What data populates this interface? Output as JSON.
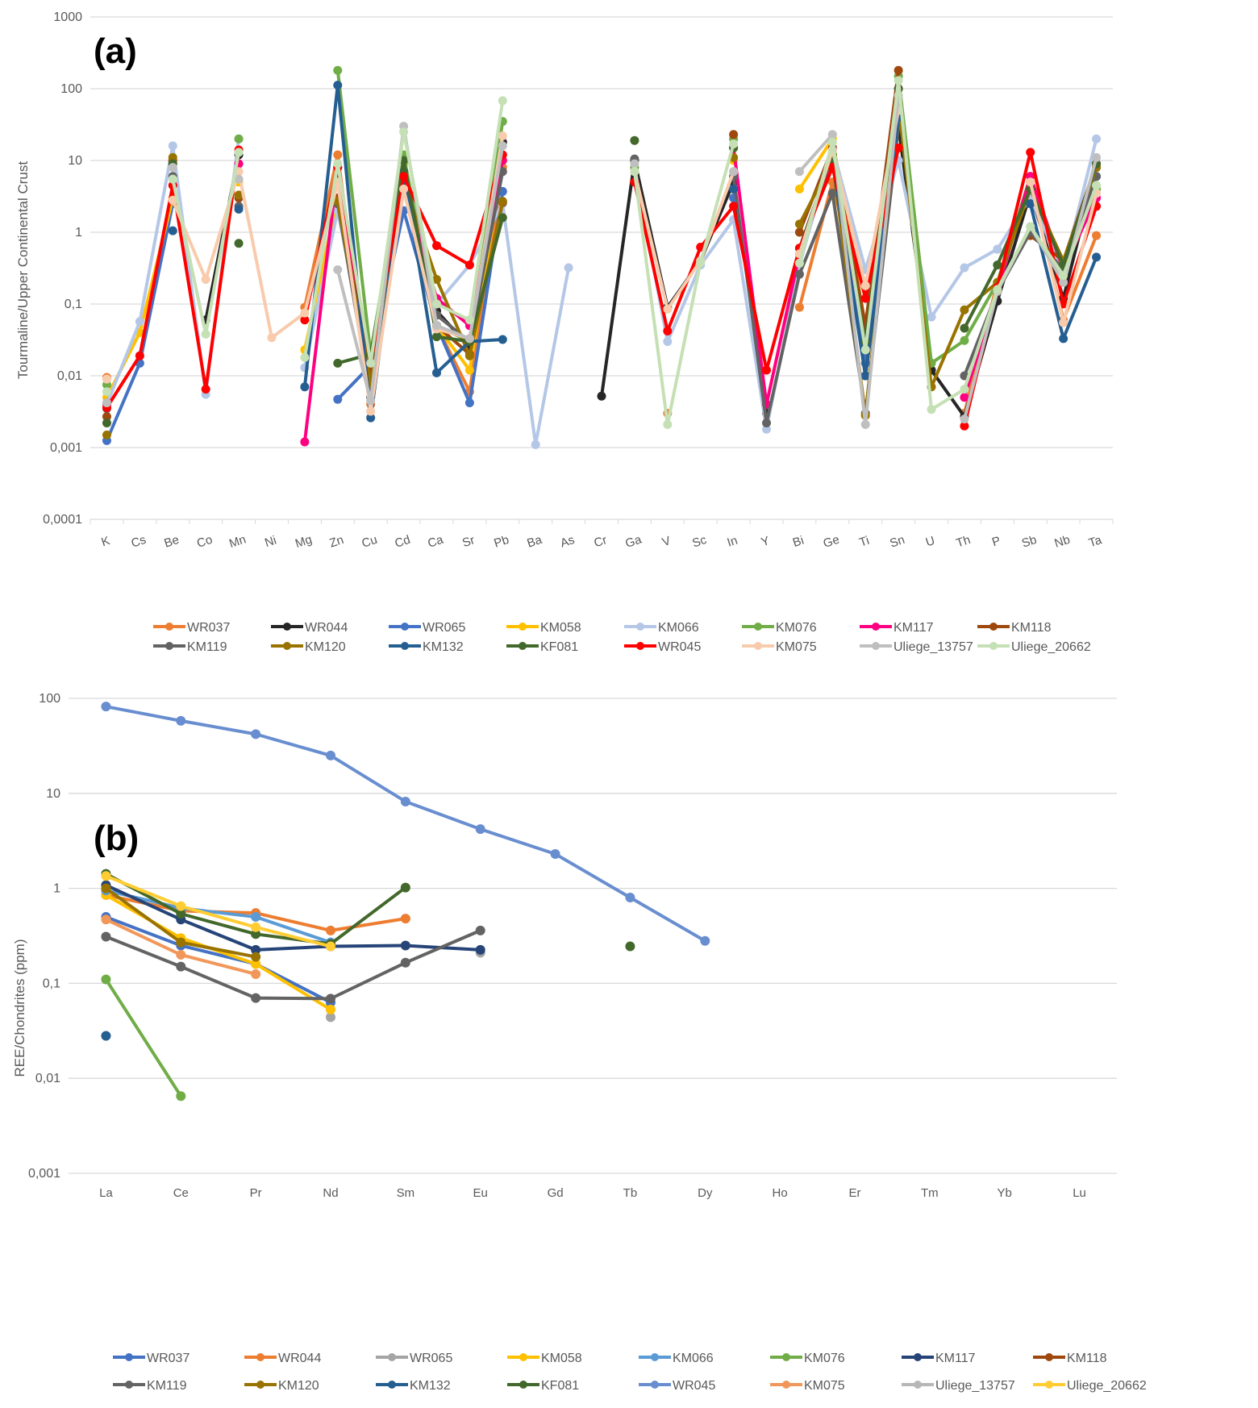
{
  "chart_data": [
    {
      "type": "line",
      "panel_label": "(a)",
      "title": "",
      "xlabel": "",
      "ylabel": "Tourmaline/Upper Continental Crust",
      "yscale": "log",
      "ylim": [
        0.0001,
        1000
      ],
      "yticks": [
        "0,0001",
        "0,001",
        "0,01",
        "0,1",
        "1",
        "10",
        "100",
        "1000"
      ],
      "grid": true,
      "legend": "bottom",
      "categories": [
        "K",
        "Cs",
        "Be",
        "Co",
        "Mn",
        "Ni",
        "Mg",
        "Zn",
        "Cu",
        "Cd",
        "Ca",
        "Sr",
        "Pb",
        "Ba",
        "As",
        "Cr",
        "Ga",
        "V",
        "Sc",
        "In",
        "Y",
        "Bi",
        "Ge",
        "Ti",
        "Sn",
        "U",
        "Th",
        "P",
        "Sb",
        "Nb",
        "Ta"
      ],
      "series": [
        {
          "name": "WR037",
          "color": "#ED7D31",
          "values": [
            0.0095,
            null,
            null,
            null,
            null,
            null,
            0.09,
            12,
            0.004,
            4,
            0.05,
            0.006,
            8,
            null,
            null,
            null,
            null,
            0.003,
            null,
            null,
            null,
            0.09,
            5,
            0.05,
            60,
            null,
            0.003,
            0.2,
            5,
            0.06,
            0.9
          ]
        },
        {
          "name": "WR044",
          "color": "#262626",
          "values": [
            null,
            null,
            null,
            0.06,
            12,
            null,
            null,
            5,
            0.008,
            5,
            0.08,
            0.025,
            18,
            null,
            null,
            0.0052,
            10,
            0.09,
            0.4,
            5,
            0.003,
            null,
            15,
            0.01,
            30,
            0.012,
            0.0027,
            0.11,
            3.5,
            0.12,
            8
          ]
        },
        {
          "name": "WR065",
          "color": "#4472C4",
          "values": [
            0.00125,
            0.015,
            2.5,
            null,
            null,
            null,
            null,
            0.0047,
            0.014,
            2,
            0.05,
            0.0042,
            3.7,
            null,
            null,
            null,
            null,
            null,
            null,
            3,
            null,
            null,
            10,
            0.015,
            40,
            null,
            null,
            null,
            2.8,
            0.3,
            6
          ]
        },
        {
          "name": "KM058",
          "color": "#FFC000",
          "values": [
            0.005,
            0.04,
            3,
            null,
            5,
            null,
            0.023,
            3,
            0.02,
            9,
            0.05,
            0.012,
            10,
            null,
            null,
            null,
            null,
            null,
            null,
            10,
            null,
            4,
            20,
            0.05,
            60,
            null,
            null,
            null,
            5,
            0.3,
            4
          ]
        },
        {
          "name": "KM066",
          "color": "#B4C7E7",
          "values": [
            0.004,
            0.057,
            16,
            0.0055,
            20,
            null,
            0.013,
            2,
            0.01,
            5,
            0.1,
            0.35,
            2.5,
            0.0011,
            0.32,
            null,
            8,
            0.03,
            0.35,
            1.5,
            0.0018,
            0.35,
            15,
            0.3,
            10,
            0.066,
            0.32,
            0.58,
            3,
            0.3,
            20
          ]
        },
        {
          "name": "KM076",
          "color": "#70AD47",
          "values": [
            0.0075,
            null,
            null,
            null,
            20,
            null,
            null,
            180,
            0.02,
            12,
            0.05,
            0.03,
            35,
            null,
            null,
            null,
            8,
            null,
            null,
            20,
            null,
            null,
            12,
            0.05,
            150,
            0.015,
            0.031,
            0.2,
            6,
            0.3,
            4
          ]
        },
        {
          "name": "KM117",
          "color": "#FF0080",
          "values": [
            0.004,
            null,
            null,
            null,
            9,
            null,
            0.0012,
            8,
            0.01,
            5,
            0.12,
            0.05,
            10,
            null,
            null,
            null,
            null,
            null,
            null,
            15,
            0.004,
            0.5,
            10,
            0.03,
            100,
            null,
            0.005,
            0.15,
            6,
            0.3,
            3
          ]
        },
        {
          "name": "KM118",
          "color": "#9E480E",
          "values": [
            0.0027,
            null,
            10,
            null,
            3,
            null,
            null,
            3,
            0.01,
            5,
            0.05,
            0.02,
            2.6,
            null,
            null,
            null,
            null,
            null,
            null,
            23,
            null,
            1,
            15,
            0.05,
            180,
            null,
            null,
            null,
            0.9,
            0.4,
            9
          ]
        },
        {
          "name": "KM119",
          "color": "#636363",
          "values": [
            0.0035,
            null,
            6,
            null,
            2.3,
            null,
            null,
            2.5,
            0.005,
            4,
            0.07,
            0.03,
            7,
            null,
            null,
            null,
            10.5,
            null,
            null,
            6,
            0.0022,
            0.26,
            3.5,
            0.003,
            30,
            null,
            0.01,
            0.15,
            1,
            0.3,
            6
          ]
        },
        {
          "name": "KM120",
          "color": "#997300",
          "values": [
            0.0015,
            null,
            11,
            null,
            3.3,
            null,
            null,
            2.7,
            0.008,
            5,
            0.22,
            0.019,
            2.7,
            null,
            null,
            null,
            null,
            null,
            null,
            11,
            null,
            1.3,
            10,
            0.0028,
            60,
            0.007,
            0.083,
            0.2,
            4,
            0.4,
            8
          ]
        },
        {
          "name": "KM132",
          "color": "#255E91",
          "values": [
            0.0042,
            null,
            1.05,
            null,
            2.1,
            null,
            0.007,
            112,
            0.0026,
            7,
            0.011,
            0.03,
            0.032,
            null,
            null,
            null,
            null,
            null,
            null,
            4,
            null,
            null,
            10,
            0.01,
            40,
            null,
            null,
            null,
            2.5,
            0.033,
            0.45
          ]
        },
        {
          "name": "KF081",
          "color": "#43682B",
          "values": [
            0.0022,
            null,
            9,
            null,
            0.7,
            null,
            null,
            0.015,
            0.02,
            10,
            0.035,
            0.03,
            1.6,
            null,
            null,
            null,
            19,
            null,
            null,
            15,
            null,
            0.6,
            12,
            0.03,
            100,
            null,
            0.046,
            0.35,
            4,
            0.35,
            9
          ]
        },
        {
          "name": "WR045",
          "color": "#FF0000",
          "values": [
            0.0036,
            0.019,
            4.5,
            0.0065,
            14,
            null,
            0.06,
            8,
            0.015,
            6,
            0.65,
            0.35,
            12,
            null,
            null,
            null,
            5,
            0.042,
            0.62,
            2.3,
            0.012,
            0.6,
            8,
            0.12,
            15,
            null,
            0.002,
            0.17,
            13,
            0.1,
            2.3
          ]
        },
        {
          "name": "KM075",
          "color": "#F8CBAD",
          "values": [
            0.009,
            null,
            2.8,
            0.22,
            7,
            0.034,
            0.075,
            5,
            0.0032,
            4,
            0.045,
            0.033,
            22,
            null,
            null,
            null,
            7,
            0.085,
            0.4,
            7,
            null,
            0.5,
            14,
            0.18,
            50,
            null,
            null,
            null,
            5,
            0.055,
            3.5
          ]
        },
        {
          "name": "Uliege_13757",
          "color": "#BFBFBF",
          "values": [
            0.0042,
            null,
            8,
            null,
            5.5,
            null,
            null,
            0.3,
            0.0045,
            30,
            0.05,
            0.033,
            16,
            null,
            null,
            null,
            9,
            null,
            null,
            7,
            null,
            7,
            23,
            0.0021,
            80,
            null,
            0.0025,
            0.15,
            1.2,
            0.2,
            11
          ]
        },
        {
          "name": "Uliege_20662",
          "color": "#C5E0B4",
          "values": [
            0.006,
            null,
            5.5,
            0.038,
            13,
            null,
            0.018,
            9,
            0.015,
            25,
            0.1,
            0.06,
            68,
            null,
            null,
            null,
            7,
            0.0021,
            0.38,
            17,
            null,
            0.37,
            18,
            0.023,
            130,
            0.0034,
            0.0065,
            0.16,
            1.2,
            0.25,
            4.5
          ]
        }
      ]
    },
    {
      "type": "line",
      "panel_label": "(b)",
      "title": "",
      "xlabel": "",
      "ylabel": "REE/Chondrites (ppm)",
      "yscale": "log",
      "ylim": [
        0.001,
        100
      ],
      "yticks": [
        "0,001",
        "0,01",
        "0,1",
        "1",
        "10",
        "100"
      ],
      "grid": true,
      "legend": "bottom",
      "categories": [
        "La",
        "Ce",
        "Pr",
        "Nd",
        "Sm",
        "Eu",
        "Gd",
        "Tb",
        "Dy",
        "Ho",
        "Er",
        "Tm",
        "Yb",
        "Lu"
      ],
      "series": [
        {
          "name": "WR037",
          "color": "#4472C4",
          "values": [
            0.5,
            0.25,
            0.16,
            0.063,
            null,
            null,
            null,
            null,
            null,
            null,
            null,
            null,
            null,
            null
          ]
        },
        {
          "name": "WR044",
          "color": "#ED7D31",
          "values": [
            0.85,
            0.58,
            0.55,
            0.36,
            0.48,
            null,
            null,
            null,
            null,
            null,
            null,
            null,
            null,
            null
          ]
        },
        {
          "name": "WR065",
          "color": "#A5A5A5",
          "values": [
            null,
            null,
            null,
            0.044,
            null,
            0.21,
            null,
            null,
            null,
            null,
            null,
            null,
            null,
            null
          ]
        },
        {
          "name": "KM058",
          "color": "#FFC000",
          "values": [
            0.85,
            0.3,
            0.16,
            0.053,
            null,
            null,
            null,
            null,
            null,
            null,
            null,
            null,
            null,
            null
          ]
        },
        {
          "name": "KM066",
          "color": "#5B9BD5",
          "values": [
            0.95,
            0.62,
            0.5,
            0.27,
            null,
            null,
            null,
            null,
            null,
            null,
            null,
            null,
            null,
            null
          ]
        },
        {
          "name": "KM076",
          "color": "#70AD47",
          "values": [
            0.11,
            0.0065,
            null,
            null,
            null,
            null,
            null,
            null,
            null,
            null,
            null,
            null,
            null,
            null
          ]
        },
        {
          "name": "KM117",
          "color": "#264478",
          "values": [
            1.08,
            0.47,
            0.225,
            0.245,
            0.25,
            0.225,
            null,
            null,
            null,
            null,
            null,
            null,
            null,
            null
          ]
        },
        {
          "name": "KM118",
          "color": "#9E480E",
          "values": [
            null,
            null,
            null,
            null,
            null,
            null,
            null,
            null,
            null,
            null,
            null,
            null,
            null,
            null
          ]
        },
        {
          "name": "KM119",
          "color": "#636363",
          "values": [
            0.31,
            0.15,
            0.07,
            0.069,
            0.165,
            0.36,
            null,
            null,
            null,
            null,
            null,
            null,
            null,
            null
          ]
        },
        {
          "name": "KM120",
          "color": "#997300",
          "values": [
            1.0,
            0.27,
            0.19,
            null,
            null,
            null,
            null,
            null,
            null,
            null,
            null,
            null,
            null,
            null
          ]
        },
        {
          "name": "KM132",
          "color": "#255E91",
          "values": [
            0.028,
            null,
            null,
            null,
            null,
            null,
            null,
            null,
            null,
            null,
            null,
            null,
            null,
            null
          ]
        },
        {
          "name": "KF081",
          "color": "#43682B",
          "values": [
            1.42,
            0.54,
            0.33,
            0.26,
            1.02,
            null,
            null,
            0.245,
            null,
            null,
            null,
            null,
            null,
            null
          ]
        },
        {
          "name": "WR045",
          "color": "#698ED0",
          "values": [
            82,
            58,
            42,
            25,
            8.2,
            4.2,
            2.3,
            0.8,
            0.28,
            null,
            null,
            null,
            null,
            null
          ]
        },
        {
          "name": "KM075",
          "color": "#F1975A",
          "values": [
            0.47,
            0.2,
            0.125,
            null,
            null,
            null,
            null,
            null,
            null,
            null,
            null,
            null,
            null,
            null
          ]
        },
        {
          "name": "Uliege_13757",
          "color": "#B7B7B7",
          "values": [
            null,
            null,
            null,
            null,
            null,
            null,
            null,
            null,
            null,
            null,
            null,
            null,
            null,
            null
          ]
        },
        {
          "name": "Uliege_20662",
          "color": "#FFCD33",
          "values": [
            1.35,
            0.65,
            0.39,
            0.245,
            null,
            null,
            null,
            null,
            null,
            null,
            null,
            null,
            null,
            null
          ]
        }
      ]
    }
  ]
}
